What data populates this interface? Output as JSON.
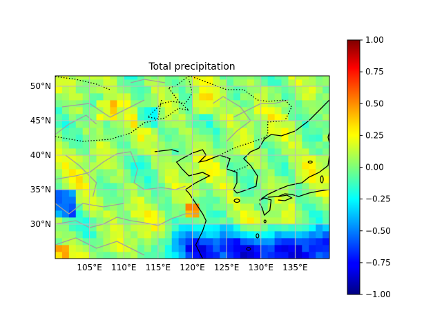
{
  "title": "Total precipitation",
  "map": {
    "lon_range": [
      100,
      140
    ],
    "lat_range": [
      25,
      51.5
    ],
    "lon_ticks": [
      105,
      110,
      115,
      120,
      125,
      130,
      135
    ],
    "lat_ticks": [
      30,
      35,
      40,
      45,
      50
    ],
    "lon_labels": [
      "105°E",
      "110°E",
      "115°E",
      "120°E",
      "125°E",
      "130°E",
      "135°E"
    ],
    "lat_labels": [
      "30°N",
      "35°N",
      "40°N",
      "45°N",
      "50°N"
    ],
    "gridlines": true,
    "gridline_color": "#bdbdbd",
    "coastline_color": "#000000",
    "border_color": "#000000",
    "river_color": "#a0a0a0"
  },
  "colorbar": {
    "colormap": "jet",
    "range": [
      -1.0,
      1.0
    ],
    "ticks": [
      1.0,
      0.75,
      0.5,
      0.25,
      0.0,
      -0.25,
      -0.5,
      -0.75,
      -1.0
    ],
    "tick_labels": [
      "1.00",
      "0.75",
      "0.50",
      "0.25",
      "0.00",
      "−0.25",
      "−0.50",
      "−0.75",
      "−1.00"
    ]
  }
}
